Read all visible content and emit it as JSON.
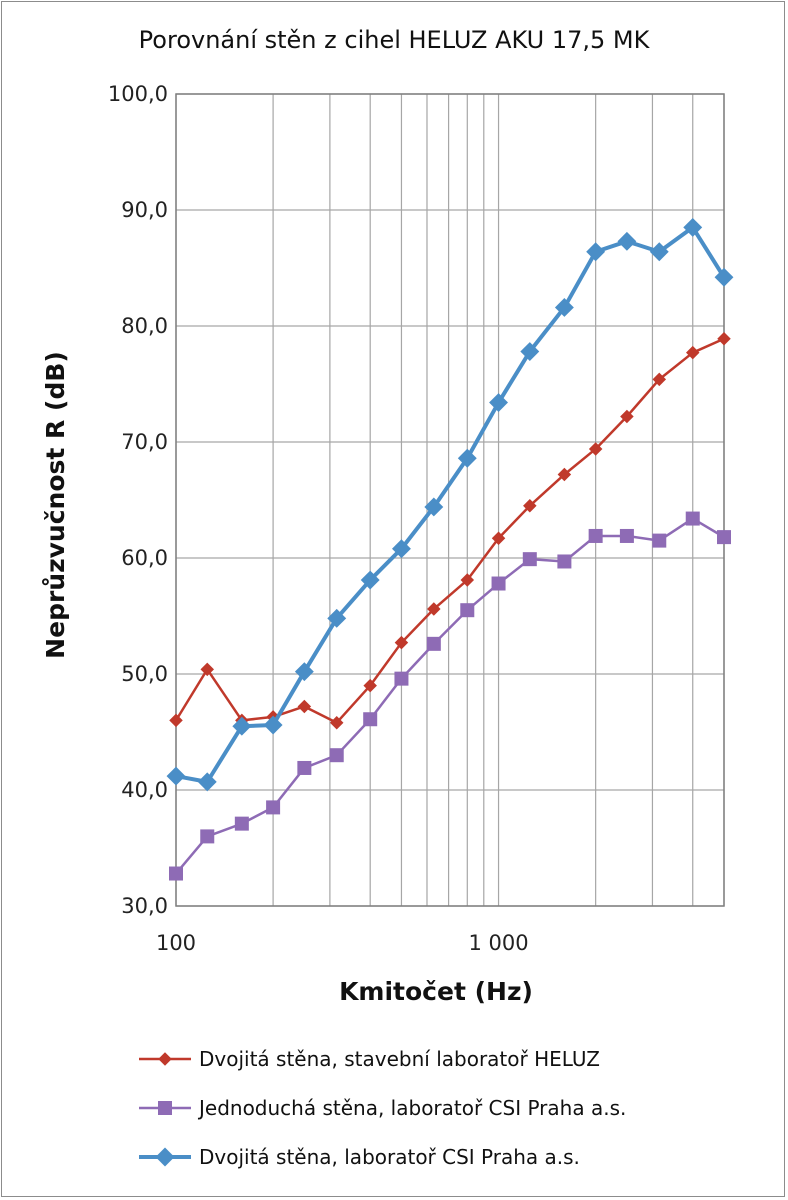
{
  "chart_data": {
    "type": "line",
    "title": "Porovnání stěn z cihel HELUZ AKU 17,5 MK",
    "xlabel": "Kmitočet (Hz)",
    "ylabel": "Neprůzvučnost R (dB)",
    "xscale": "log",
    "xlim": [
      100,
      5000
    ],
    "ylim": [
      30,
      100
    ],
    "grid": true,
    "legend_position": "bottom",
    "x": [
      100,
      125,
      160,
      200,
      250,
      315,
      400,
      500,
      630,
      800,
      1000,
      1250,
      1600,
      2000,
      2500,
      3150,
      4000,
      5000
    ],
    "y_ticks": [
      "30,0",
      "40,0",
      "50,0",
      "60,0",
      "70,0",
      "80,0",
      "90,0",
      "100,0"
    ],
    "x_ticks": [
      "100",
      "1 000"
    ],
    "series": [
      {
        "name": "Dvojitá stěna, stavební laboratoř HELUZ",
        "color": "#c0392b",
        "marker": "diamond",
        "values": [
          46.0,
          50.4,
          46.0,
          46.3,
          47.2,
          45.8,
          49.0,
          52.7,
          55.6,
          58.1,
          61.7,
          64.5,
          67.2,
          69.4,
          72.2,
          75.4,
          77.7,
          78.9
        ]
      },
      {
        "name": "Jednoduchá stěna, laboratoř CSI Praha a.s.",
        "color": "#8e6bb5",
        "marker": "square",
        "values": [
          32.8,
          36.0,
          37.1,
          38.5,
          41.9,
          43.0,
          46.1,
          49.6,
          52.6,
          55.5,
          57.8,
          59.9,
          59.7,
          61.9,
          61.9,
          61.5,
          63.4,
          61.8
        ]
      },
      {
        "name": "Dvojitá stěna, laboratoř CSI Praha a.s.",
        "color": "#4a8ec7",
        "marker": "diamond",
        "values": [
          41.2,
          40.7,
          45.5,
          45.6,
          50.2,
          54.8,
          58.1,
          60.8,
          64.4,
          68.6,
          73.4,
          77.8,
          81.6,
          86.4,
          87.3,
          86.4,
          88.5,
          84.2
        ]
      }
    ]
  }
}
